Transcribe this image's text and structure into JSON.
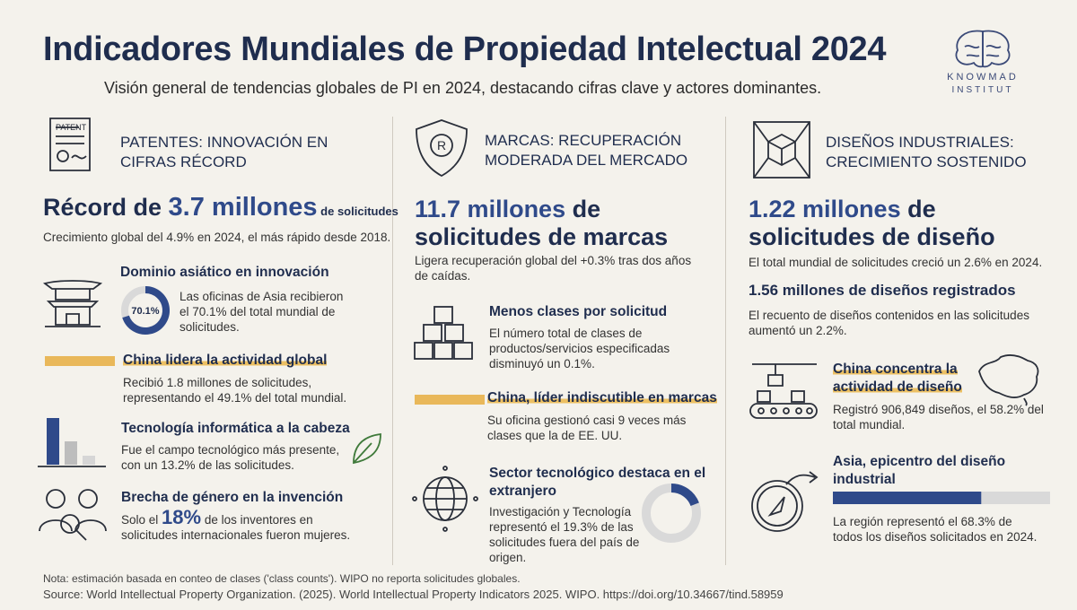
{
  "header": {
    "title": "Indicadores Mundiales de Propiedad Intelectual 2024",
    "subtitle": "Visión general de tendencias globales de PI en 2024, destacando cifras clave y actores dominantes."
  },
  "logo": {
    "name": "KNOWMAD",
    "sub": "INSTITUT"
  },
  "patents": {
    "heading": "PATENTES: INNOVACIÓN EN CIFRAS RÉCORD",
    "headline": [
      "Récord de ",
      "3.7 millones",
      " de solicitudes"
    ],
    "sub": "Crecimiento global del 4.9% en 2024, el más rápido desde 2018.",
    "asia": {
      "title": "Dominio asiático en innovación",
      "text": "Las oficinas de Asia recibieron el 70.1% del total mundial de solicitudes.",
      "donut": {
        "value": 70.1,
        "label": "70.1%"
      }
    },
    "china": {
      "title": "China lidera la actividad global",
      "text": "Recibió 1.8 millones de solicitudes, representando el 49.1% del total mundial."
    },
    "tech": {
      "title": "Tecnología informática a la cabeza",
      "text": "Fue el campo tecnológico más presente, con un 13.2% de las solicitudes."
    },
    "gender": {
      "title": "Brecha de género en la invención",
      "text": [
        "Solo el ",
        "18%",
        " de los inventores en solicitudes internacionales fueron mujeres."
      ]
    }
  },
  "marks": {
    "heading": "MARCAS: RECUPERACIÓN MODERADA DEL MERCADO",
    "headline": [
      "11.7 millones",
      " de",
      "solicitudes de marcas"
    ],
    "sub": "Ligera recuperación global del +0.3% tras dos años de caídas.",
    "classes": {
      "title": "Menos clases por solicitud",
      "text": "El número total de clases de productos/servicios especificadas disminuyó un 0.1%."
    },
    "china": {
      "title": "China, líder indiscutible en marcas",
      "text": "Su oficina gestionó casi 9 veces más clases que la de EE. UU."
    },
    "sector": {
      "title": "Sector tecnológico destaca en el extranjero",
      "text": "Investigación y Tecnología representó el 19.3% de las solicitudes fuera del país de origen.",
      "donut": {
        "value": 19.3
      }
    }
  },
  "designs": {
    "heading": "DISEÑOS INDUSTRIALES: CRECIMIENTO SOSTENIDO",
    "headline": [
      "1.22 millones",
      " de",
      "solicitudes de diseño"
    ],
    "sub": "El total mundial de solicitudes creció un 2.6% en 2024.",
    "registered": {
      "title": "1.56 millones de diseños registrados",
      "text": "El recuento de diseños contenidos en las solicitudes aumentó un 2.2%."
    },
    "china": {
      "title": "China concentra la actividad de diseño",
      "text": "Registró 906,849 diseños, el 58.2% del total mundial."
    },
    "asia": {
      "title": "Asia, epicentro del diseño industrial",
      "text": "La región representó el 68.3% de todos los diseños solicitados en 2024.",
      "bar": {
        "value": 68.3
      }
    }
  },
  "footer": {
    "note": "Nota: estimación basada en conteo de clases ('class counts'). WIPO no reporta solicitudes globales.",
    "source": "Source: World Intellectual Property Organization. (2025). World Intellectual Property Indicators 2025. WIPO. https://doi.org/10.34667/tind.58959"
  }
}
